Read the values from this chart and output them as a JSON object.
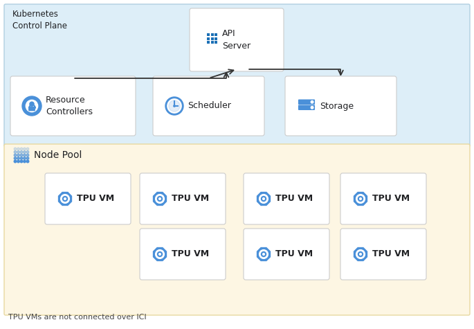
{
  "fig_width": 6.85,
  "fig_height": 4.75,
  "dpi": 100,
  "bg_color": "#ffffff",
  "cp_bg": "#ddeef8",
  "np_bg": "#fdf6e3",
  "box_color": "#ffffff",
  "box_edge": "#cccccc",
  "title_text": "Kubernetes\nControl Plane",
  "node_pool_text": "Node Pool",
  "footer_text": "TPU VMs are not connected over ICI",
  "api_server_label": "API\nServer",
  "rc_label": "Resource\nControllers",
  "sched_label": "Scheduler",
  "storage_label": "Storage",
  "tpu_label": "TPU VM",
  "icon_color": "#4a90d9",
  "icon_color2": "#1a6fb5",
  "arrow_color": "#333333",
  "text_color": "#202124",
  "dot_color": "#4a90d9",
  "cp_border": "#b0cfe0",
  "np_border": "#e8d9a0"
}
